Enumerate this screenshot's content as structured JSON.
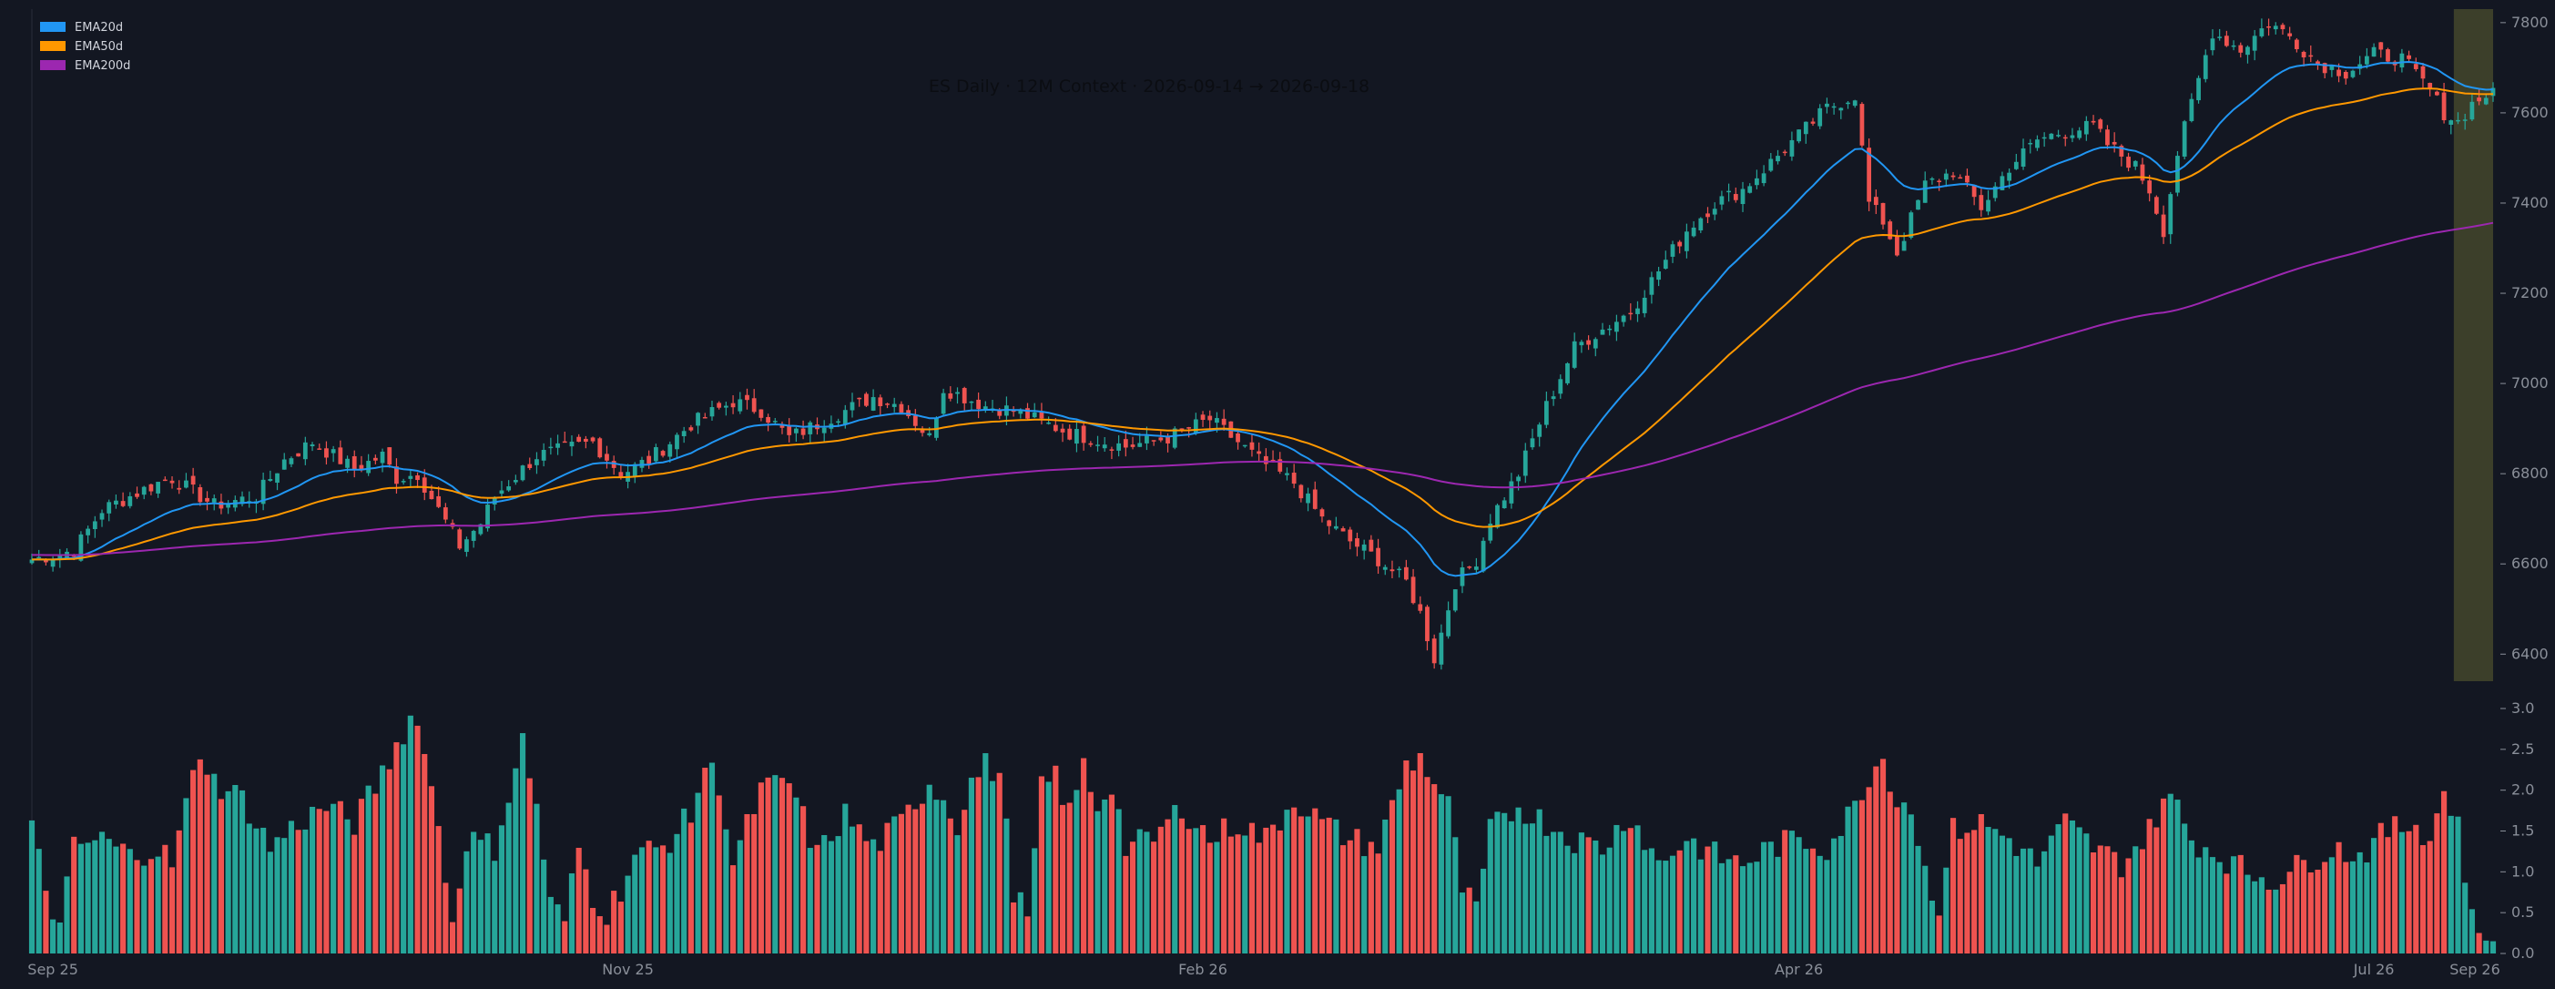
{
  "chart_data": {
    "type": "candlestick",
    "title": "ES Daily · 12M Context · 2026-09-14 → 2026-09-18",
    "background_color": "#131722",
    "up_color": "#26a69a",
    "down_color": "#ef5350",
    "legend": {
      "placement": "top-left",
      "items": [
        {
          "name": "EMA20d",
          "color": "#2196f3"
        },
        {
          "name": "EMA50d",
          "color": "#ff9800"
        },
        {
          "name": "EMA200d",
          "color": "#9c27b0"
        }
      ]
    },
    "price_axis": {
      "range": [
        6340,
        7830
      ],
      "ticks": [
        "6400",
        "6600",
        "6800",
        "7000",
        "7200",
        "7400",
        "7600",
        "7800"
      ]
    },
    "volume_axis": {
      "range": [
        0,
        3.0
      ],
      "ticks": [
        "0.0",
        "0.5",
        "1.0",
        "1.5",
        "2.0",
        "2.5",
        "3.0"
      ]
    },
    "x_ticks": [
      "Sep 25",
      "Nov 25",
      "Feb 26",
      "Apr 26",
      "Jul 26",
      "Sep 26"
    ],
    "highlight": {
      "label": "2026-09-14 → 2026-09-18",
      "color": "#8a8a3a"
    },
    "anchors": {
      "close": [
        [
          0,
          6610
        ],
        [
          6,
          6630
        ],
        [
          10,
          6720
        ],
        [
          18,
          6780
        ],
        [
          20,
          6790
        ],
        [
          26,
          6730
        ],
        [
          32,
          6750
        ],
        [
          36,
          6830
        ],
        [
          40,
          6870
        ],
        [
          46,
          6810
        ],
        [
          50,
          6840
        ],
        [
          52,
          6790
        ],
        [
          55,
          6800
        ],
        [
          58,
          6720
        ],
        [
          61,
          6640
        ],
        [
          64,
          6690
        ],
        [
          66,
          6750
        ],
        [
          72,
          6840
        ],
        [
          80,
          6870
        ],
        [
          84,
          6800
        ],
        [
          88,
          6830
        ],
        [
          94,
          6910
        ],
        [
          100,
          6960
        ],
        [
          104,
          6940
        ],
        [
          108,
          6880
        ],
        [
          112,
          6910
        ],
        [
          116,
          6940
        ],
        [
          120,
          6970
        ],
        [
          124,
          6950
        ],
        [
          128,
          6880
        ],
        [
          130,
          6990
        ],
        [
          136,
          6950
        ],
        [
          140,
          6940
        ],
        [
          148,
          6890
        ],
        [
          156,
          6860
        ],
        [
          162,
          6880
        ],
        [
          168,
          6920
        ],
        [
          172,
          6870
        ],
        [
          175,
          6830
        ],
        [
          180,
          6780
        ],
        [
          184,
          6700
        ],
        [
          188,
          6650
        ],
        [
          192,
          6610
        ],
        [
          196,
          6560
        ],
        [
          198,
          6490
        ],
        [
          200,
          6390
        ],
        [
          203,
          6560
        ],
        [
          206,
          6610
        ],
        [
          208,
          6700
        ],
        [
          212,
          6800
        ],
        [
          216,
          6950
        ],
        [
          220,
          7080
        ],
        [
          224,
          7120
        ],
        [
          228,
          7160
        ],
        [
          232,
          7250
        ],
        [
          236,
          7340
        ],
        [
          240,
          7400
        ],
        [
          244,
          7430
        ],
        [
          248,
          7490
        ],
        [
          252,
          7550
        ],
        [
          256,
          7610
        ],
        [
          260,
          7640
        ],
        [
          262,
          7400
        ],
        [
          264,
          7360
        ],
        [
          266,
          7290
        ],
        [
          270,
          7440
        ],
        [
          274,
          7470
        ],
        [
          278,
          7390
        ],
        [
          282,
          7480
        ],
        [
          286,
          7540
        ],
        [
          290,
          7560
        ],
        [
          294,
          7570
        ],
        [
          296,
          7530
        ],
        [
          300,
          7480
        ],
        [
          302,
          7430
        ],
        [
          304,
          7340
        ],
        [
          306,
          7510
        ],
        [
          308,
          7620
        ],
        [
          311,
          7780
        ],
        [
          315,
          7740
        ],
        [
          319,
          7800
        ],
        [
          322,
          7770
        ],
        [
          326,
          7710
        ],
        [
          330,
          7690
        ],
        [
          334,
          7730
        ],
        [
          338,
          7720
        ],
        [
          342,
          7650
        ],
        [
          344,
          7600
        ],
        [
          346,
          7580
        ],
        [
          348,
          7620
        ],
        [
          350,
          7640
        ]
      ],
      "volume": [
        [
          0,
          1.5
        ],
        [
          2,
          0.8
        ],
        [
          4,
          0.3
        ],
        [
          6,
          1.3
        ],
        [
          10,
          1.4
        ],
        [
          14,
          1.2
        ],
        [
          18,
          1.3
        ],
        [
          20,
          1.1
        ],
        [
          24,
          2.5
        ],
        [
          26,
          2.1
        ],
        [
          30,
          1.9
        ],
        [
          34,
          1.3
        ],
        [
          38,
          1.6
        ],
        [
          42,
          1.8
        ],
        [
          46,
          1.6
        ],
        [
          50,
          2.2
        ],
        [
          54,
          2.9
        ],
        [
          56,
          2.6
        ],
        [
          58,
          1.5
        ],
        [
          60,
          0.4
        ],
        [
          62,
          1.4
        ],
        [
          66,
          1.3
        ],
        [
          70,
          2.6
        ],
        [
          72,
          1.8
        ],
        [
          74,
          0.6
        ],
        [
          76,
          0.4
        ],
        [
          78,
          1.3
        ],
        [
          80,
          0.7
        ],
        [
          82,
          0.5
        ],
        [
          84,
          0.8
        ],
        [
          86,
          1.2
        ],
        [
          90,
          1.3
        ],
        [
          94,
          1.7
        ],
        [
          96,
          2.3
        ],
        [
          98,
          2.1
        ],
        [
          100,
          1.1
        ],
        [
          104,
          2.0
        ],
        [
          108,
          2.1
        ],
        [
          112,
          1.2
        ],
        [
          116,
          1.7
        ],
        [
          120,
          1.3
        ],
        [
          124,
          1.6
        ],
        [
          128,
          2.1
        ],
        [
          130,
          1.9
        ],
        [
          132,
          1.6
        ],
        [
          134,
          2.1
        ],
        [
          136,
          2.3
        ],
        [
          138,
          2.2
        ],
        [
          140,
          0.8
        ],
        [
          142,
          0.4
        ],
        [
          144,
          2.0
        ],
        [
          146,
          2.2
        ],
        [
          148,
          1.7
        ],
        [
          150,
          2.3
        ],
        [
          152,
          1.8
        ],
        [
          154,
          2.1
        ],
        [
          156,
          1.3
        ],
        [
          160,
          1.4
        ],
        [
          164,
          1.8
        ],
        [
          168,
          1.4
        ],
        [
          172,
          1.6
        ],
        [
          176,
          1.4
        ],
        [
          180,
          1.9
        ],
        [
          184,
          1.6
        ],
        [
          188,
          1.4
        ],
        [
          192,
          1.3
        ],
        [
          196,
          2.3
        ],
        [
          198,
          2.4
        ],
        [
          200,
          2.1
        ],
        [
          202,
          1.8
        ],
        [
          204,
          0.8
        ],
        [
          206,
          0.5
        ],
        [
          208,
          1.5
        ],
        [
          212,
          1.8
        ],
        [
          216,
          1.6
        ],
        [
          220,
          1.4
        ],
        [
          224,
          1.3
        ],
        [
          228,
          1.7
        ],
        [
          232,
          1.1
        ],
        [
          236,
          1.4
        ],
        [
          240,
          1.2
        ],
        [
          244,
          1.1
        ],
        [
          248,
          1.3
        ],
        [
          252,
          1.4
        ],
        [
          256,
          1.3
        ],
        [
          260,
          1.8
        ],
        [
          262,
          2.2
        ],
        [
          264,
          2.4
        ],
        [
          266,
          1.9
        ],
        [
          268,
          1.8
        ],
        [
          270,
          1.0
        ],
        [
          272,
          0.6
        ],
        [
          274,
          1.5
        ],
        [
          278,
          1.6
        ],
        [
          282,
          1.4
        ],
        [
          286,
          1.1
        ],
        [
          290,
          1.6
        ],
        [
          294,
          1.3
        ],
        [
          298,
          1.1
        ],
        [
          302,
          1.5
        ],
        [
          304,
          1.9
        ],
        [
          306,
          1.8
        ],
        [
          308,
          1.4
        ],
        [
          312,
          1.2
        ],
        [
          316,
          1.0
        ],
        [
          320,
          0.9
        ],
        [
          324,
          1.1
        ],
        [
          328,
          1.3
        ],
        [
          332,
          1.2
        ],
        [
          336,
          1.5
        ],
        [
          340,
          1.6
        ],
        [
          342,
          1.4
        ],
        [
          344,
          2.0
        ],
        [
          346,
          1.6
        ],
        [
          348,
          0.4
        ],
        [
          350,
          0.2
        ]
      ]
    }
  }
}
